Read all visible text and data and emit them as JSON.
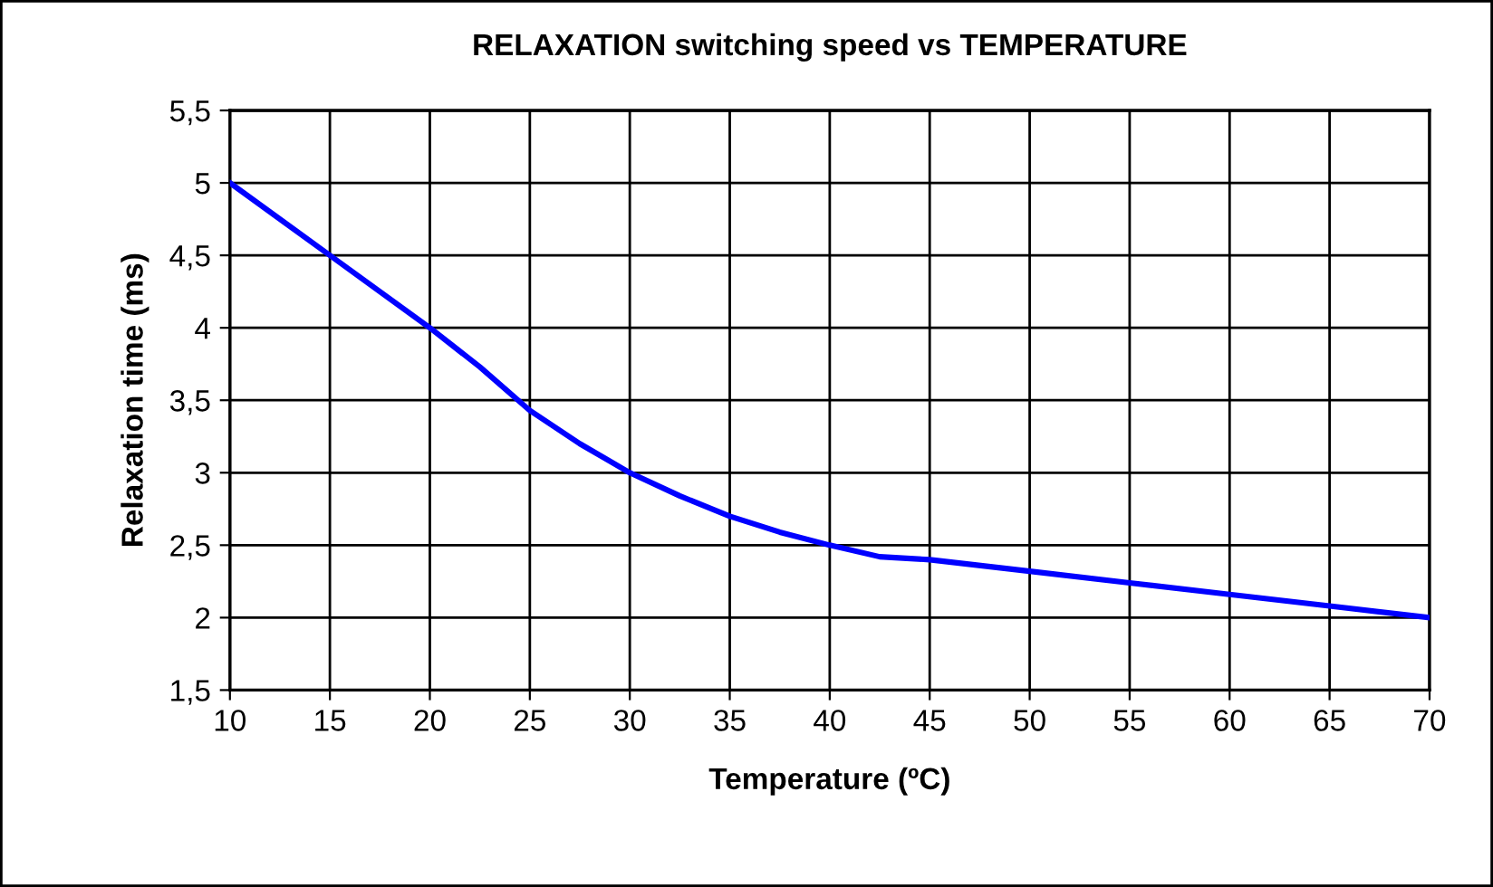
{
  "chart_data": {
    "type": "line",
    "title": "RELAXATION switching speed vs TEMPERATURE",
    "xlabel": "Temperature (ºC)",
    "ylabel": "Relaxation time (ms)",
    "series": [
      {
        "color": "#0000ff",
        "x": [
          10,
          15,
          20,
          22.5,
          25,
          27.5,
          30,
          32.5,
          35,
          37.5,
          40,
          42.5,
          45,
          50,
          55,
          60,
          65,
          70
        ],
        "values": [
          5.0,
          4.5,
          4.0,
          3.73,
          3.43,
          3.2,
          3.0,
          2.84,
          2.7,
          2.59,
          2.5,
          2.42,
          2.4,
          2.32,
          2.24,
          2.16,
          2.08,
          2.0
        ]
      }
    ],
    "xlim": [
      10,
      70
    ],
    "xticks": [
      10,
      15,
      20,
      25,
      30,
      35,
      40,
      45,
      50,
      55,
      60,
      65,
      70
    ],
    "ylim": [
      1.5,
      5.5
    ],
    "yticks": [
      {
        "value": 1.5,
        "label": "1,5"
      },
      2,
      {
        "value": 2.5,
        "label": "2,5"
      },
      3,
      {
        "value": 3.5,
        "label": "3,5"
      },
      4,
      {
        "value": 4.5,
        "label": "4,5"
      },
      5,
      {
        "value": 5.5,
        "label": "5,5"
      }
    ],
    "grid": true,
    "marker": "none",
    "line_style": "solid",
    "legend": false
  }
}
